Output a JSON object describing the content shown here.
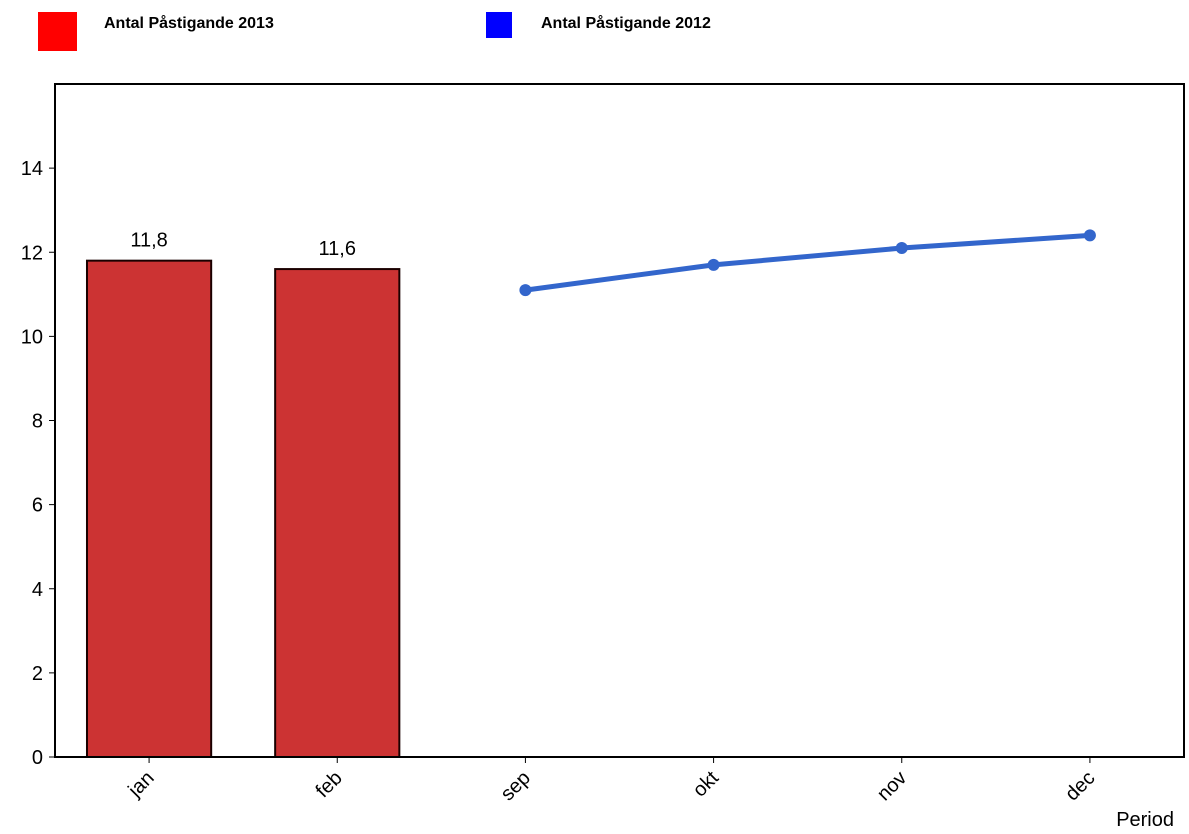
{
  "legend": [
    {
      "label": "Antal Påstigande 2013",
      "color": "#ff0000"
    },
    {
      "label": "Antal Påstigande 2012",
      "color": "#0000ff"
    }
  ],
  "chart_data": {
    "type": "bar+line",
    "categories": [
      "jan",
      "feb",
      "sep",
      "okt",
      "nov",
      "dec"
    ],
    "xlabel": "Period",
    "ylabel": "",
    "ylim": [
      0,
      16
    ],
    "yticks": [
      0,
      2,
      4,
      6,
      8,
      10,
      12,
      14
    ],
    "series": [
      {
        "name": "Antal Påstigande 2013",
        "type": "bar",
        "color": "#cc3333",
        "points": [
          {
            "x": "jan",
            "y": 11.8,
            "label": "11,8"
          },
          {
            "x": "feb",
            "y": 11.6,
            "label": "11,6"
          }
        ]
      },
      {
        "name": "Antal Påstigande 2012",
        "type": "line",
        "color": "#3366cc",
        "points": [
          {
            "x": "sep",
            "y": 11.1
          },
          {
            "x": "okt",
            "y": 11.7
          },
          {
            "x": "nov",
            "y": 12.1
          },
          {
            "x": "dec",
            "y": 12.4
          }
        ]
      }
    ],
    "grid": false,
    "legend_position": "top-left"
  }
}
